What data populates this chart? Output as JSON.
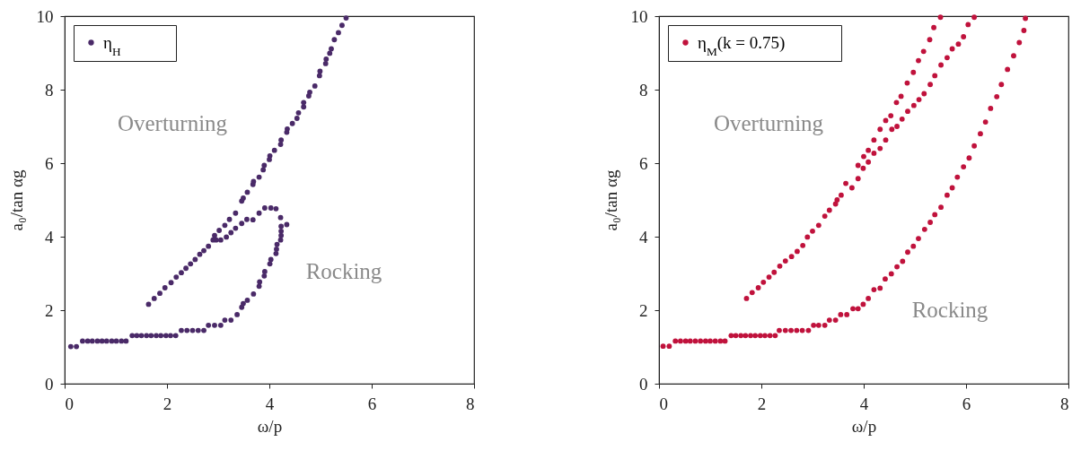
{
  "chart_data": [
    {
      "type": "scatter",
      "xlabel": "ω/p",
      "ylabel": "a₀/tan αg",
      "xlim": [
        0,
        8
      ],
      "ylim": [
        0,
        10
      ],
      "xticks": [
        0,
        2,
        4,
        6,
        8
      ],
      "yticks": [
        0,
        2,
        4,
        6,
        8,
        10
      ],
      "grid": false,
      "legend": "top left",
      "marker": "circle",
      "annotations": [
        "Overturning",
        "Rocking"
      ],
      "series": [
        {
          "name": "η$_{H}$",
          "color": "#4a2a68",
          "x": [
            0.12,
            0.23,
            0.35,
            0.45,
            0.54,
            0.64,
            0.73,
            0.82,
            0.92,
            1.01,
            1.11,
            1.2,
            1.32,
            1.41,
            1.5,
            1.6,
            1.69,
            1.79,
            1.88,
            1.98,
            2.07,
            2.17,
            2.28,
            2.39,
            2.5,
            2.61,
            2.72,
            2.81,
            2.93,
            3.05,
            3.13,
            3.25,
            3.37,
            3.46,
            3.49,
            3.57,
            3.69,
            3.8,
            3.81,
            3.9,
            3.91,
            4.01,
            4.03,
            4.13,
            4.14,
            4.15,
            4.22,
            4.23,
            4.23,
            4.23,
            4.34,
            4.22,
            4.13,
            4.03,
            3.91,
            3.8,
            3.68,
            3.56,
            3.46,
            3.34,
            3.25,
            3.16,
            3.05,
            2.96,
            1.64,
            1.75,
            1.86,
            1.96,
            2.08,
            2.18,
            2.28,
            2.37,
            2.46,
            2.55,
            2.64,
            2.72,
            2.81,
            2.9,
            2.93,
            3.02,
            3.13,
            3.22,
            3.34,
            3.46,
            3.49,
            3.57,
            3.68,
            3.69,
            3.8,
            3.88,
            3.9,
            4.0,
            4.01,
            4.1,
            4.22,
            4.23,
            4.34,
            4.35,
            4.45,
            4.54,
            4.57,
            4.67,
            4.67,
            4.77,
            4.79,
            4.89,
            4.98,
            4.99,
            5.1,
            5.11,
            5.18,
            5.21,
            5.27,
            5.35,
            5.42,
            5.5
          ],
          "values": [
            1.01,
            1.01,
            1.16,
            1.16,
            1.16,
            1.16,
            1.16,
            1.16,
            1.16,
            1.16,
            1.16,
            1.16,
            1.31,
            1.31,
            1.31,
            1.31,
            1.31,
            1.31,
            1.31,
            1.31,
            1.31,
            1.31,
            1.45,
            1.45,
            1.45,
            1.45,
            1.45,
            1.59,
            1.59,
            1.59,
            1.73,
            1.73,
            1.88,
            2.08,
            2.18,
            2.27,
            2.44,
            2.65,
            2.77,
            2.93,
            3.05,
            3.26,
            3.38,
            3.54,
            3.66,
            3.79,
            3.91,
            4.03,
            4.15,
            4.28,
            4.33,
            4.52,
            4.76,
            4.78,
            4.78,
            4.64,
            4.46,
            4.47,
            4.36,
            4.23,
            4.11,
            3.99,
            3.91,
            3.91,
            2.16,
            2.32,
            2.46,
            2.61,
            2.75,
            2.9,
            3.02,
            3.14,
            3.26,
            3.38,
            3.52,
            3.62,
            3.74,
            3.91,
            4.03,
            4.17,
            4.31,
            4.47,
            4.64,
            4.97,
            5.05,
            5.21,
            5.42,
            5.5,
            5.62,
            5.82,
            5.94,
            6.1,
            6.2,
            6.35,
            6.51,
            6.63,
            6.84,
            6.93,
            7.08,
            7.22,
            7.37,
            7.53,
            7.65,
            7.83,
            7.93,
            8.1,
            8.38,
            8.5,
            8.71,
            8.83,
            8.99,
            9.11,
            9.36,
            9.55,
            9.75,
            9.95
          ]
        }
      ]
    },
    {
      "type": "scatter",
      "xlabel": "ω/p",
      "ylabel": "a₀/tan αg",
      "xlim": [
        0,
        8
      ],
      "ylim": [
        0,
        10
      ],
      "xticks": [
        0,
        2,
        4,
        6,
        8
      ],
      "yticks": [
        0,
        2,
        4,
        6,
        8,
        10
      ],
      "grid": false,
      "legend": "top left",
      "marker": "circle",
      "annotations": [
        "Overturning",
        "Rocking"
      ],
      "series": [
        {
          "name": "η$_{M}$(k = 0.75)",
          "color": "#c0123c",
          "x": [
            0.08,
            0.2,
            0.32,
            0.42,
            0.52,
            0.61,
            0.71,
            0.81,
            0.91,
            1.0,
            1.1,
            1.2,
            1.29,
            1.41,
            1.5,
            1.6,
            1.69,
            1.79,
            1.88,
            1.98,
            2.07,
            2.17,
            2.27,
            2.35,
            2.47,
            2.58,
            2.69,
            2.8,
            2.92,
            3.02,
            3.12,
            3.24,
            3.33,
            3.45,
            3.55,
            3.67,
            3.79,
            3.89,
            3.99,
            4.09,
            4.2,
            4.32,
            4.42,
            4.54,
            4.65,
            4.76,
            4.86,
            4.97,
            5.07,
            5.19,
            5.3,
            5.39,
            5.51,
            5.63,
            5.73,
            5.83,
            5.95,
            6.06,
            6.16,
            6.28,
            6.38,
            6.48,
            6.6,
            6.69,
            6.81,
            6.93,
            7.04,
            7.13,
            7.16,
            1.71,
            1.82,
            1.94,
            2.04,
            2.15,
            2.25,
            2.36,
            2.47,
            2.59,
            2.7,
            2.81,
            2.9,
            3.0,
            3.12,
            3.24,
            3.33,
            3.45,
            3.48,
            3.56,
            3.65,
            3.77,
            3.89,
            4.0,
            4.09,
            4.2,
            4.32,
            4.43,
            4.53,
            4.64,
            4.73,
            4.85,
            4.97,
            5.07,
            5.17,
            5.29,
            5.37,
            5.5,
            3.89,
            3.99,
            4.09,
            4.2,
            4.32,
            4.43,
            4.55,
            4.65,
            4.75,
            4.86,
            4.98,
            5.08,
            5.18,
            5.3,
            5.39,
            5.51,
            5.63,
            5.73,
            5.85,
            5.95,
            6.04,
            6.16
          ],
          "values": [
            1.02,
            1.02,
            1.16,
            1.16,
            1.16,
            1.16,
            1.16,
            1.16,
            1.16,
            1.16,
            1.16,
            1.16,
            1.16,
            1.31,
            1.31,
            1.31,
            1.31,
            1.31,
            1.31,
            1.31,
            1.31,
            1.31,
            1.31,
            1.45,
            1.45,
            1.45,
            1.45,
            1.45,
            1.45,
            1.59,
            1.59,
            1.59,
            1.73,
            1.73,
            1.88,
            1.88,
            2.04,
            2.04,
            2.16,
            2.32,
            2.56,
            2.6,
            2.85,
            2.99,
            3.18,
            3.33,
            3.58,
            3.74,
            3.95,
            4.2,
            4.39,
            4.6,
            4.8,
            5.13,
            5.33,
            5.62,
            5.9,
            6.14,
            6.47,
            6.8,
            7.12,
            7.49,
            7.81,
            8.14,
            8.55,
            8.92,
            9.28,
            9.61,
            9.94,
            2.32,
            2.48,
            2.61,
            2.76,
            2.9,
            3.03,
            3.2,
            3.34,
            3.46,
            3.6,
            3.76,
            3.99,
            4.15,
            4.31,
            4.56,
            4.72,
            4.89,
            5.0,
            5.13,
            5.45,
            5.33,
            5.94,
            6.18,
            6.35,
            6.63,
            6.92,
            7.16,
            7.29,
            7.65,
            7.82,
            8.18,
            8.47,
            8.79,
            9.04,
            9.36,
            9.69,
            9.97,
            5.58,
            5.86,
            6.03,
            6.27,
            6.4,
            6.63,
            6.92,
            7.0,
            7.2,
            7.41,
            7.57,
            7.73,
            7.89,
            8.14,
            8.38,
            8.67,
            8.87,
            9.11,
            9.24,
            9.44,
            9.77,
            9.97
          ]
        }
      ]
    }
  ]
}
